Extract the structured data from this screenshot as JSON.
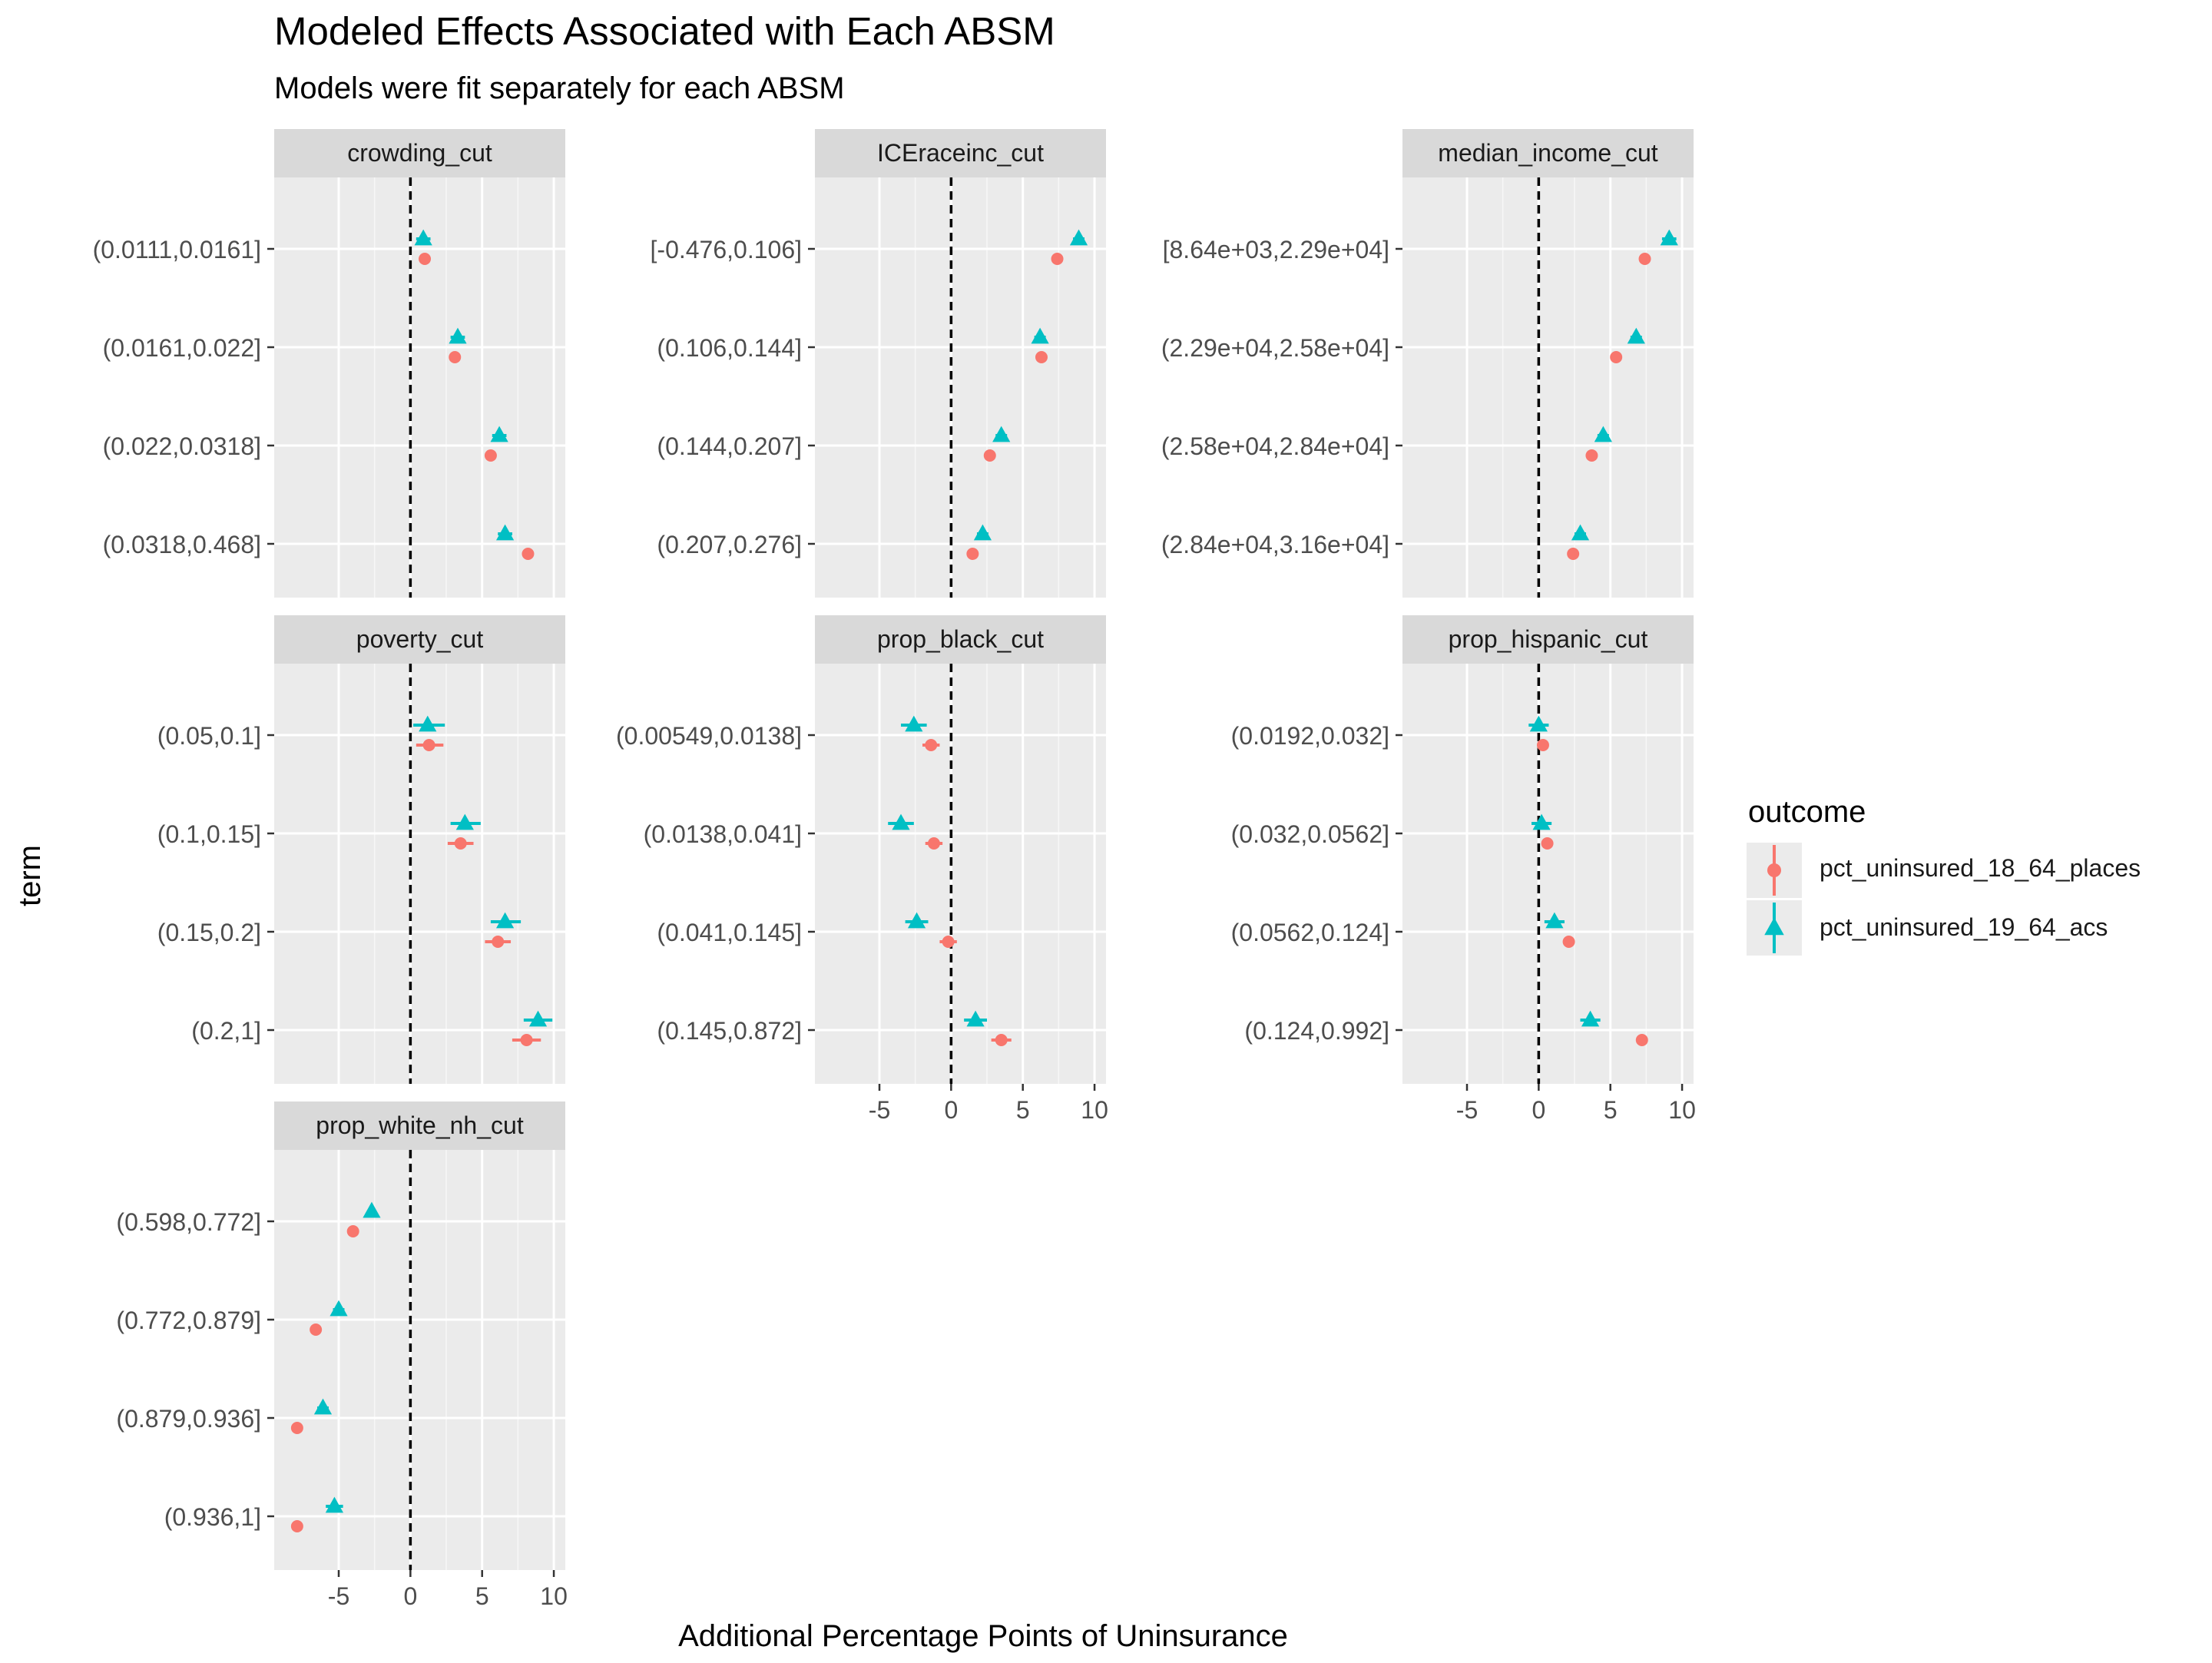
{
  "chart_data": {
    "type": "scatter",
    "title": "Modeled Effects Associated with Each ABSM",
    "subtitle": "Models were fit separately for each ABSM",
    "xlabel": "Additional Percentage Points of Uninsurance",
    "ylabel": "term",
    "xlim": [
      -9.5,
      10.8
    ],
    "x_ticks": [
      "-5",
      "0",
      "5",
      "10"
    ],
    "x_tick_values": [
      -5,
      0,
      5,
      10
    ],
    "reference_line": 0,
    "grid": true,
    "legend": {
      "title": "outcome",
      "position": "right",
      "entries": [
        "pct_uninsured_18_64_places",
        "pct_uninsured_19_64_acs"
      ]
    },
    "series_styles": [
      {
        "name": "pct_uninsured_18_64_places",
        "color": "#F8766D",
        "marker": "circle"
      },
      {
        "name": "pct_uninsured_19_64_acs",
        "color": "#00BFC4",
        "marker": "triangle"
      }
    ],
    "panels": [
      {
        "name": "crowding_cut",
        "terms": [
          "(0.0111,0.0161]",
          "(0.0161,0.022]",
          "(0.022,0.0318]",
          "(0.0318,0.468]"
        ],
        "places": [
          {
            "est": 1.0,
            "lo": 0.8,
            "hi": 1.2
          },
          {
            "est": 3.1,
            "lo": 2.9,
            "hi": 3.3
          },
          {
            "est": 5.6,
            "lo": 5.4,
            "hi": 5.8
          },
          {
            "est": 8.2,
            "lo": 8.0,
            "hi": 8.4
          }
        ],
        "acs": [
          {
            "est": 0.9,
            "lo": 0.4,
            "hi": 1.4
          },
          {
            "est": 3.3,
            "lo": 2.8,
            "hi": 3.8
          },
          {
            "est": 6.2,
            "lo": 5.7,
            "hi": 6.7
          },
          {
            "est": 6.6,
            "lo": 6.1,
            "hi": 7.1
          }
        ]
      },
      {
        "name": "ICEraceinc_cut",
        "terms": [
          "[-0.476,0.106]",
          "(0.106,0.144]",
          "(0.144,0.207]",
          "(0.207,0.276]"
        ],
        "places": [
          {
            "est": 7.4,
            "lo": 7.2,
            "hi": 7.6
          },
          {
            "est": 6.3,
            "lo": 6.1,
            "hi": 6.5
          },
          {
            "est": 2.7,
            "lo": 2.5,
            "hi": 2.9
          },
          {
            "est": 1.5,
            "lo": 1.3,
            "hi": 1.7
          }
        ],
        "acs": [
          {
            "est": 8.9,
            "lo": 8.5,
            "hi": 9.3
          },
          {
            "est": 6.2,
            "lo": 5.8,
            "hi": 6.6
          },
          {
            "est": 3.5,
            "lo": 3.1,
            "hi": 3.9
          },
          {
            "est": 2.2,
            "lo": 1.8,
            "hi": 2.6
          }
        ]
      },
      {
        "name": "median_income_cut",
        "terms": [
          "[8.64e+03,2.29e+04]",
          "(2.29e+04,2.58e+04]",
          "(2.58e+04,2.84e+04]",
          "(2.84e+04,3.16e+04]"
        ],
        "places": [
          {
            "est": 7.4,
            "lo": 7.2,
            "hi": 7.6
          },
          {
            "est": 5.4,
            "lo": 5.2,
            "hi": 5.6
          },
          {
            "est": 3.7,
            "lo": 3.5,
            "hi": 3.9
          },
          {
            "est": 2.4,
            "lo": 2.2,
            "hi": 2.6
          }
        ],
        "acs": [
          {
            "est": 9.1,
            "lo": 8.6,
            "hi": 9.6
          },
          {
            "est": 6.8,
            "lo": 6.4,
            "hi": 7.2
          },
          {
            "est": 4.5,
            "lo": 4.1,
            "hi": 4.9
          },
          {
            "est": 2.9,
            "lo": 2.5,
            "hi": 3.3
          }
        ]
      },
      {
        "name": "poverty_cut",
        "terms": [
          "(0.05,0.1]",
          "(0.1,0.15]",
          "(0.15,0.2]",
          "(0.2,1]"
        ],
        "places": [
          {
            "est": 1.3,
            "lo": 0.4,
            "hi": 2.3
          },
          {
            "est": 3.5,
            "lo": 2.6,
            "hi": 4.4
          },
          {
            "est": 6.1,
            "lo": 5.2,
            "hi": 7.0
          },
          {
            "est": 8.1,
            "lo": 7.1,
            "hi": 9.1
          }
        ],
        "acs": [
          {
            "est": 1.2,
            "lo": 0.2,
            "hi": 2.4
          },
          {
            "est": 3.8,
            "lo": 2.8,
            "hi": 4.9
          },
          {
            "est": 6.6,
            "lo": 5.6,
            "hi": 7.7
          },
          {
            "est": 8.9,
            "lo": 7.9,
            "hi": 9.9
          }
        ]
      },
      {
        "name": "prop_black_cut",
        "terms": [
          "(0.00549,0.0138]",
          "(0.0138,0.041]",
          "(0.041,0.145]",
          "(0.145,0.872]"
        ],
        "places": [
          {
            "est": -1.4,
            "lo": -2.0,
            "hi": -0.8
          },
          {
            "est": -1.2,
            "lo": -1.8,
            "hi": -0.6
          },
          {
            "est": -0.2,
            "lo": -0.8,
            "hi": 0.4
          },
          {
            "est": 3.5,
            "lo": 2.8,
            "hi": 4.2
          }
        ],
        "acs": [
          {
            "est": -2.6,
            "lo": -3.5,
            "hi": -1.7
          },
          {
            "est": -3.5,
            "lo": -4.4,
            "hi": -2.6
          },
          {
            "est": -2.4,
            "lo": -3.2,
            "hi": -1.6
          },
          {
            "est": 1.7,
            "lo": 0.9,
            "hi": 2.5
          }
        ]
      },
      {
        "name": "prop_hispanic_cut",
        "terms": [
          "(0.0192,0.032]",
          "(0.032,0.0562]",
          "(0.0562,0.124]",
          "(0.124,0.992]"
        ],
        "places": [
          {
            "est": 0.3,
            "lo": -0.1,
            "hi": 0.7
          },
          {
            "est": 0.6,
            "lo": 0.2,
            "hi": 1.0
          },
          {
            "est": 2.1,
            "lo": 1.7,
            "hi": 2.5
          },
          {
            "est": 7.2,
            "lo": 6.8,
            "hi": 7.6
          }
        ],
        "acs": [
          {
            "est": 0.0,
            "lo": -0.7,
            "hi": 0.7
          },
          {
            "est": 0.2,
            "lo": -0.5,
            "hi": 0.9
          },
          {
            "est": 1.1,
            "lo": 0.4,
            "hi": 1.8
          },
          {
            "est": 3.6,
            "lo": 2.9,
            "hi": 4.3
          }
        ]
      },
      {
        "name": "prop_white_nh_cut",
        "terms": [
          "(0.598,0.772]",
          "(0.772,0.879]",
          "(0.879,0.936]",
          "(0.936,1]"
        ],
        "places": [
          {
            "est": -4.0,
            "lo": -4.2,
            "hi": -3.8
          },
          {
            "est": -6.6,
            "lo": -6.8,
            "hi": -6.4
          },
          {
            "est": -7.9,
            "lo": -8.1,
            "hi": -7.7
          },
          {
            "est": -7.9,
            "lo": -8.1,
            "hi": -7.7
          }
        ],
        "acs": [
          {
            "est": -2.7,
            "lo": -3.0,
            "hi": -2.4
          },
          {
            "est": -5.0,
            "lo": -5.4,
            "hi": -4.6
          },
          {
            "est": -6.1,
            "lo": -6.5,
            "hi": -5.7
          },
          {
            "est": -5.3,
            "lo": -5.9,
            "hi": -4.7
          }
        ]
      }
    ]
  }
}
